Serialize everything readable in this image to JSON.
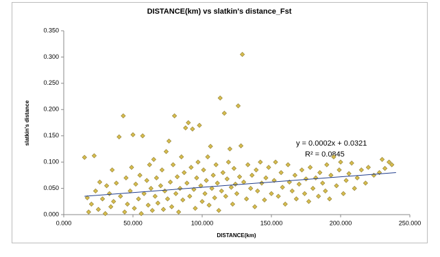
{
  "chart_data": {
    "type": "scatter",
    "title": "DISTANCE(km) vs slatkin's distance_Fst",
    "x_label": "DISTANCE(km)",
    "y_label": "slatkin's distance",
    "annotations": [
      "y = 0.0002x + 0.0321",
      "R² = 0.0845"
    ],
    "color": "#d6bc4e",
    "edge_color": "#8c7a2c",
    "x": [
      15,
      17,
      18,
      20,
      22,
      23,
      25,
      26,
      28,
      30,
      31,
      33,
      34,
      35,
      36,
      38,
      40,
      41,
      43,
      44,
      45,
      46,
      48,
      49,
      50,
      51,
      52,
      54,
      55,
      56,
      57,
      58,
      60,
      61,
      62,
      63,
      64,
      65,
      66,
      67,
      68,
      70,
      71,
      72,
      73,
      74,
      75,
      76,
      77,
      78,
      79,
      80,
      81,
      82,
      83,
      84,
      85,
      86,
      87,
      88,
      89,
      90,
      91,
      92,
      93,
      94,
      95,
      96,
      97,
      98,
      99,
      100,
      101,
      102,
      103,
      104,
      105,
      106,
      107,
      108,
      109,
      110,
      111,
      112,
      113,
      114,
      115,
      116,
      117,
      118,
      119,
      120,
      121,
      122,
      123,
      124,
      125,
      126,
      127,
      128,
      129,
      130,
      132,
      133,
      135,
      136,
      138,
      139,
      140,
      142,
      143,
      145,
      146,
      148,
      150,
      152,
      153,
      155,
      157,
      158,
      160,
      162,
      163,
      165,
      167,
      168,
      170,
      172,
      174,
      175,
      177,
      178,
      180,
      182,
      184,
      185,
      187,
      189,
      190,
      192,
      193,
      195,
      197,
      199,
      200,
      202,
      204,
      206,
      208,
      210,
      212,
      215,
      218,
      220,
      224,
      228,
      230,
      232,
      235,
      237
    ],
    "values": [
      0.109,
      0.032,
      0.005,
      0.02,
      0.112,
      0.045,
      0.01,
      0.062,
      0.03,
      0.002,
      0.055,
      0.04,
      0.015,
      0.085,
      0.025,
      0.06,
      0.148,
      0.035,
      0.188,
      0.005,
      0.07,
      0.02,
      0.045,
      0.09,
      0.152,
      0.012,
      0.058,
      0.03,
      0.075,
      0.002,
      0.15,
      0.04,
      0.065,
      0.018,
      0.095,
      0.05,
      0.008,
      0.105,
      0.035,
      0.07,
      0.022,
      0.055,
      0.085,
      0.01,
      0.045,
      0.12,
      0.03,
      0.14,
      0.062,
      0.015,
      0.095,
      0.188,
      0.04,
      0.072,
      0.005,
      0.05,
      0.11,
      0.028,
      0.08,
      0.165,
      0.06,
      0.175,
      0.035,
      0.09,
      0.163,
      0.048,
      0.012,
      0.07,
      0.1,
      0.17,
      0.055,
      0.025,
      0.085,
      0.04,
      0.065,
      0.11,
      0.018,
      0.13,
      0.05,
      0.075,
      0.032,
      0.095,
      0.06,
      0.008,
      0.222,
      0.045,
      0.08,
      0.193,
      0.035,
      0.068,
      0.1,
      0.125,
      0.052,
      0.02,
      0.088,
      0.058,
      0.04,
      0.207,
      0.072,
      0.131,
      0.305,
      0.062,
      0.03,
      0.095,
      0.05,
      0.075,
      0.015,
      0.085,
      0.045,
      0.1,
      0.06,
      0.028,
      0.07,
      0.09,
      0.04,
      0.065,
      0.1,
      0.035,
      0.08,
      0.052,
      0.02,
      0.095,
      0.062,
      0.045,
      0.075,
      0.03,
      0.058,
      0.085,
      0.04,
      0.068,
      0.025,
      0.09,
      0.05,
      0.07,
      0.035,
      0.08,
      0.06,
      0.045,
      0.095,
      0.03,
      0.075,
      0.11,
      0.055,
      0.085,
      0.1,
      0.04,
      0.065,
      0.078,
      0.098,
      0.05,
      0.07,
      0.085,
      0.06,
      0.09,
      0.075,
      0.08,
      0.105,
      0.088,
      0.1,
      0.095
    ],
    "trendline": {
      "x": [
        15,
        240
      ],
      "values": [
        0.035,
        0.08
      ],
      "color": "#1f3c8c"
    },
    "xlim": [
      0,
      250
    ],
    "ylim": [
      0,
      0.35
    ],
    "xticks": [
      {
        "value": 0,
        "label": "0.000"
      },
      {
        "value": 50,
        "label": "50.000"
      },
      {
        "value": 100,
        "label": "100.000"
      },
      {
        "value": 150,
        "label": "150.000"
      },
      {
        "value": 200,
        "label": "200.000"
      },
      {
        "value": 250,
        "label": "250.000"
      }
    ],
    "yticks": [
      {
        "value": 0,
        "label": "0.000"
      },
      {
        "value": 0.05,
        "label": "0.050"
      },
      {
        "value": 0.1,
        "label": "0.100"
      },
      {
        "value": 0.15,
        "label": "0.150"
      },
      {
        "value": 0.2,
        "label": "0.200"
      },
      {
        "value": 0.25,
        "label": "0.250"
      },
      {
        "value": 0.3,
        "label": "0.300"
      },
      {
        "value": 0.35,
        "label": "0.350"
      }
    ],
    "grid": false
  }
}
